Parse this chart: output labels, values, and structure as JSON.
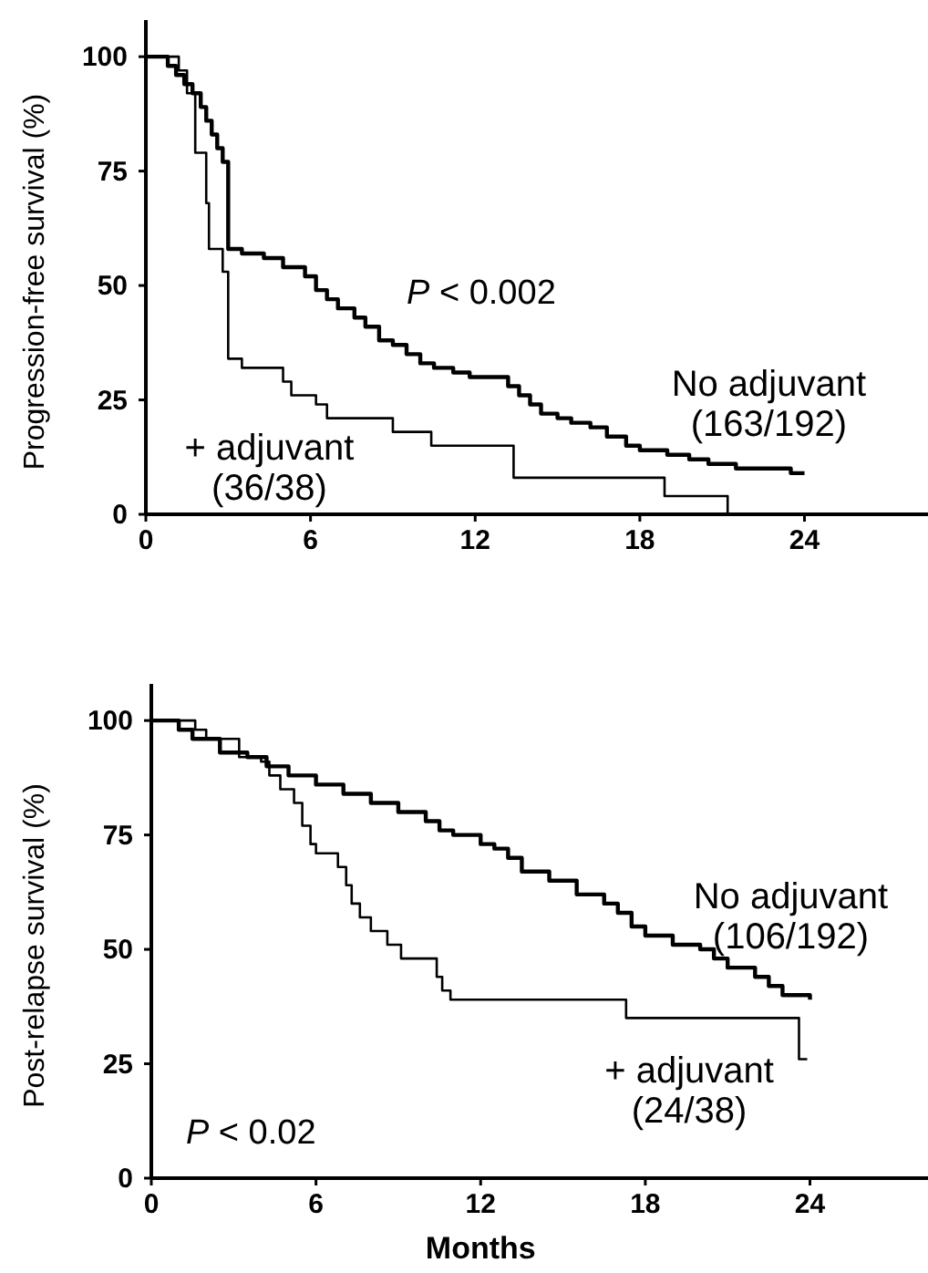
{
  "chart_data": [
    {
      "type": "step",
      "ylabel": "Progression-free survival (%)",
      "xlim": [
        0,
        28.5
      ],
      "xticks": [
        0,
        6,
        12,
        18,
        24
      ],
      "ylim": [
        0,
        108
      ],
      "yticks": [
        0,
        25,
        50,
        75,
        100
      ],
      "grid": false,
      "line_style": "solid",
      "annotations": [
        "P < 0.002"
      ],
      "series": [
        {
          "name": "No adjuvant (163/192)",
          "color": "#000000",
          "x": [
            0,
            0.5,
            0.8,
            1.1,
            1.4,
            1.7,
            2.0,
            2.2,
            2.4,
            2.6,
            2.8,
            3.0,
            3.5,
            4.3,
            5.0,
            5.8,
            6.2,
            6.6,
            7.0,
            7.6,
            8.0,
            8.5,
            9.0,
            9.5,
            10.0,
            10.5,
            11.2,
            11.8,
            13.2,
            13.6,
            14.0,
            14.4,
            15.0,
            15.5,
            16.2,
            16.8,
            17.5,
            18.0,
            19.0,
            19.8,
            20.5,
            21.5,
            23.5,
            24.0
          ],
          "values": [
            100,
            100,
            98,
            96,
            94,
            92,
            89,
            86,
            83,
            80,
            77,
            58,
            57,
            56,
            54,
            52,
            49,
            47,
            45,
            43,
            41,
            38,
            37,
            35,
            33,
            32,
            31,
            30,
            28,
            26,
            24,
            22,
            21,
            20,
            19,
            17,
            15,
            14,
            13,
            12,
            11,
            10,
            9,
            9
          ]
        },
        {
          "name": "+ adjuvant (36/38)",
          "color": "#000000",
          "x": [
            0,
            1.2,
            1.5,
            1.8,
            2.2,
            2.3,
            2.8,
            3.0,
            3.5,
            5.0,
            5.3,
            6.2,
            6.6,
            9.0,
            10.4,
            13.4,
            18.9,
            21.2,
            28.5
          ],
          "values": [
            100,
            97,
            92,
            79,
            68,
            58,
            53,
            34,
            32,
            29,
            26,
            24,
            21,
            18,
            15,
            8,
            4,
            0,
            0
          ]
        }
      ]
    },
    {
      "type": "step",
      "xlabel": "Months",
      "ylabel": "Post-relapse survival (%)",
      "xlim": [
        0,
        28.5
      ],
      "xticks": [
        0,
        6,
        12,
        18,
        24
      ],
      "ylim": [
        0,
        108
      ],
      "yticks": [
        0,
        25,
        50,
        75,
        100
      ],
      "grid": false,
      "line_style": "solid",
      "annotations": [
        "P < 0.02"
      ],
      "series": [
        {
          "name": "No adjuvant (106/192)",
          "color": "#000000",
          "x": [
            0,
            1,
            1.5,
            2.5,
            3.5,
            4.2,
            5,
            6,
            7,
            8,
            9,
            10,
            10.5,
            11,
            12,
            12.5,
            13,
            13.5,
            14.5,
            15.5,
            16.5,
            17,
            17.5,
            18,
            19,
            20,
            20.5,
            21,
            22,
            22.5,
            23,
            24
          ],
          "values": [
            100,
            98,
            96,
            93,
            92,
            90,
            88,
            86,
            84,
            82,
            80,
            78,
            76,
            75,
            73,
            72,
            70,
            67,
            65,
            62,
            60,
            58,
            55,
            53,
            51,
            50,
            48,
            46,
            44,
            42,
            40,
            39
          ]
        },
        {
          "name": "+ adjuvant (24/38)",
          "color": "#000000",
          "x": [
            0,
            1.6,
            2.0,
            3.2,
            4.0,
            4.3,
            4.7,
            5.2,
            5.5,
            5.8,
            6.0,
            6.8,
            7.1,
            7.3,
            7.6,
            8.0,
            8.6,
            9.1,
            10.4,
            10.6,
            10.9,
            17.3,
            23.6,
            23.9
          ],
          "values": [
            100,
            98,
            96,
            92,
            91,
            88,
            85,
            82,
            77,
            73,
            71,
            68,
            64,
            60,
            57,
            54,
            51,
            48,
            44,
            41,
            39,
            35,
            26,
            26
          ]
        }
      ]
    }
  ]
}
